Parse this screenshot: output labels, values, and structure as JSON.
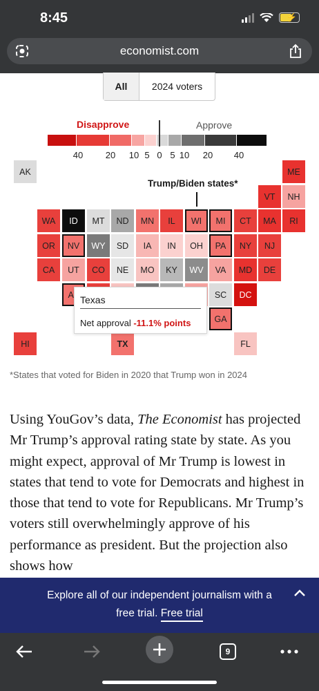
{
  "status": {
    "time": "8:45"
  },
  "browser": {
    "url": "economist.com",
    "tab_count": "9"
  },
  "toggle": {
    "all": "All",
    "voters": "2024 voters",
    "selected": "All"
  },
  "legend": {
    "disapprove": "Disapprove",
    "approve": "Approve",
    "ticks": [
      "40",
      "20",
      "10",
      "5",
      "0",
      "5",
      "10",
      "20",
      "40"
    ],
    "colors": [
      "#c8100f",
      "#e63a35",
      "#f06a66",
      "#f7a5a2",
      "#fbd1cf",
      "#d9d9d9",
      "#a8a8a8",
      "#6e6e6e",
      "#3a3a3a",
      "#0d0d0d"
    ]
  },
  "map": {
    "annotation": "Trump/Biden states*",
    "states": [
      {
        "abbr": "AK",
        "color": "#dcdcdc"
      },
      {
        "abbr": "ME",
        "color": "#e8322f"
      },
      {
        "abbr": "VT",
        "color": "#e8322f"
      },
      {
        "abbr": "NH",
        "color": "#f6a3a0"
      },
      {
        "abbr": "WA",
        "color": "#e8403c"
      },
      {
        "abbr": "ID",
        "color": "#0d0d0d"
      },
      {
        "abbr": "MT",
        "color": "#dcdcdc"
      },
      {
        "abbr": "ND",
        "color": "#a8a8a8"
      },
      {
        "abbr": "MN",
        "color": "#f2726d"
      },
      {
        "abbr": "IL",
        "color": "#e8403c"
      },
      {
        "abbr": "WI",
        "color": "#f2726d"
      },
      {
        "abbr": "MI",
        "color": "#f2726d"
      },
      {
        "abbr": "CT",
        "color": "#e8403c"
      },
      {
        "abbr": "MA",
        "color": "#e8322f"
      },
      {
        "abbr": "RI",
        "color": "#e8322f"
      },
      {
        "abbr": "OR",
        "color": "#e8403c"
      },
      {
        "abbr": "NV",
        "color": "#f2726d"
      },
      {
        "abbr": "WY",
        "color": "#7a7a7a"
      },
      {
        "abbr": "SD",
        "color": "#e6e6e6"
      },
      {
        "abbr": "IA",
        "color": "#f8b7b4"
      },
      {
        "abbr": "IN",
        "color": "#fbd1cf"
      },
      {
        "abbr": "OH",
        "color": "#fbd1cf"
      },
      {
        "abbr": "PA",
        "color": "#f2726d"
      },
      {
        "abbr": "NY",
        "color": "#e8403c"
      },
      {
        "abbr": "NJ",
        "color": "#e8403c"
      },
      {
        "abbr": "CA",
        "color": "#e8403c"
      },
      {
        "abbr": "UT",
        "color": "#f6a3a0"
      },
      {
        "abbr": "CO",
        "color": "#e8403c"
      },
      {
        "abbr": "NE",
        "color": "#e6e6e6"
      },
      {
        "abbr": "MO",
        "color": "#f8c4c1"
      },
      {
        "abbr": "KY",
        "color": "#b8b8b8"
      },
      {
        "abbr": "WV",
        "color": "#8c8c8c"
      },
      {
        "abbr": "VA",
        "color": "#f6a3a0"
      },
      {
        "abbr": "MD",
        "color": "#e8322f"
      },
      {
        "abbr": "DE",
        "color": "#e8403c"
      },
      {
        "abbr": "AZ",
        "color": "#f2726d"
      },
      {
        "abbr": "SC",
        "color": "#dcdcdc"
      },
      {
        "abbr": "DC",
        "color": "#d4120f"
      },
      {
        "abbr": "GA",
        "color": "#f2726d"
      },
      {
        "abbr": "HI",
        "color": "#e8403c"
      },
      {
        "abbr": "TX",
        "color": "#f2726d"
      },
      {
        "abbr": "FL",
        "color": "#f8c4c1"
      }
    ]
  },
  "tooltip": {
    "title": "Texas",
    "label": "Net approval",
    "value": "-11.1% points"
  },
  "footnote": "*States that voted for Biden in 2020 that Trump won in 2024",
  "article": {
    "part1": "Using YouGov’s data, ",
    "italic": "The Economist",
    "part2": " has projected Mr Trump’s approval rating state by state. As you might expect, approval of Mr Trump is lowest in states that tend to vote for Democrats and highest in those that tend to vote for Republicans. Mr Trump’s voters still overwhelmingly approve of his performance as president. But the projection also shows how"
  },
  "promo": {
    "line1": "Explore all of our independent journalism with a",
    "line2_prefix": "free trial. ",
    "link": "Free trial"
  }
}
